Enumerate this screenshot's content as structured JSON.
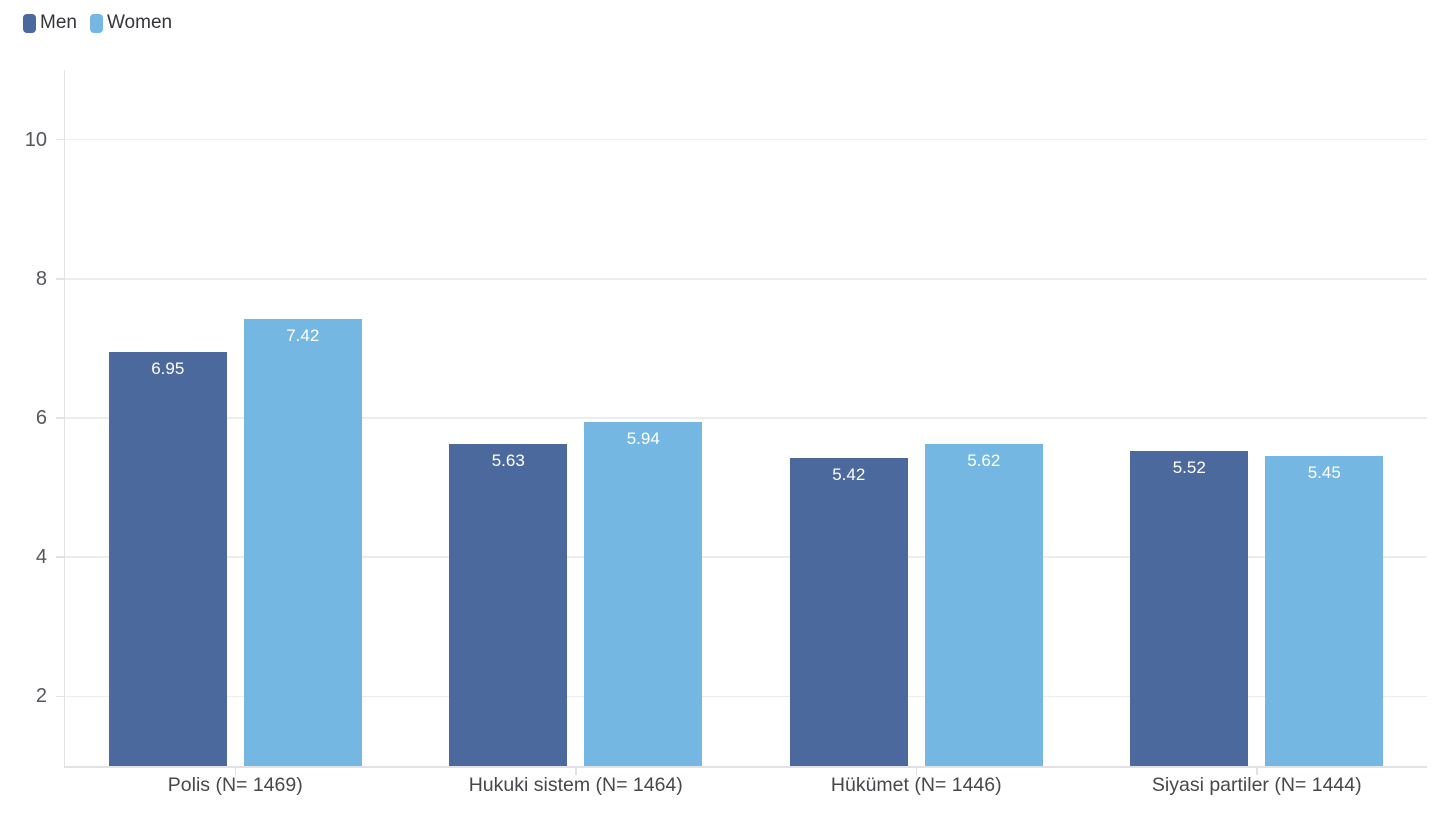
{
  "chart_data": {
    "type": "bar",
    "title": "",
    "categories": [
      "Polis (N= 1469)",
      "Hukuki sistem (N= 1464)",
      "Hükümet (N= 1446)",
      "Siyasi partiler (N= 1444)"
    ],
    "series": [
      {
        "name": "Men",
        "color": "#4b699d",
        "values": [
          6.95,
          5.63,
          5.42,
          5.52
        ]
      },
      {
        "name": "Women",
        "color": "#74b7e3",
        "values": [
          7.42,
          5.94,
          5.62,
          5.45
        ]
      }
    ],
    "y_ticks": [
      2,
      4,
      6,
      8,
      10
    ],
    "ylim": [
      1,
      11
    ],
    "grid": true,
    "legend_position": "top-left",
    "value_label_decimals": 2,
    "colors": {
      "background": "#ffffff",
      "grid": "#ededf0",
      "axis": "#e2e2e6",
      "tick_label": "#56575c",
      "x_label": "#47484c",
      "value_label": "#ffffff",
      "legend_label": "#35363a"
    }
  }
}
